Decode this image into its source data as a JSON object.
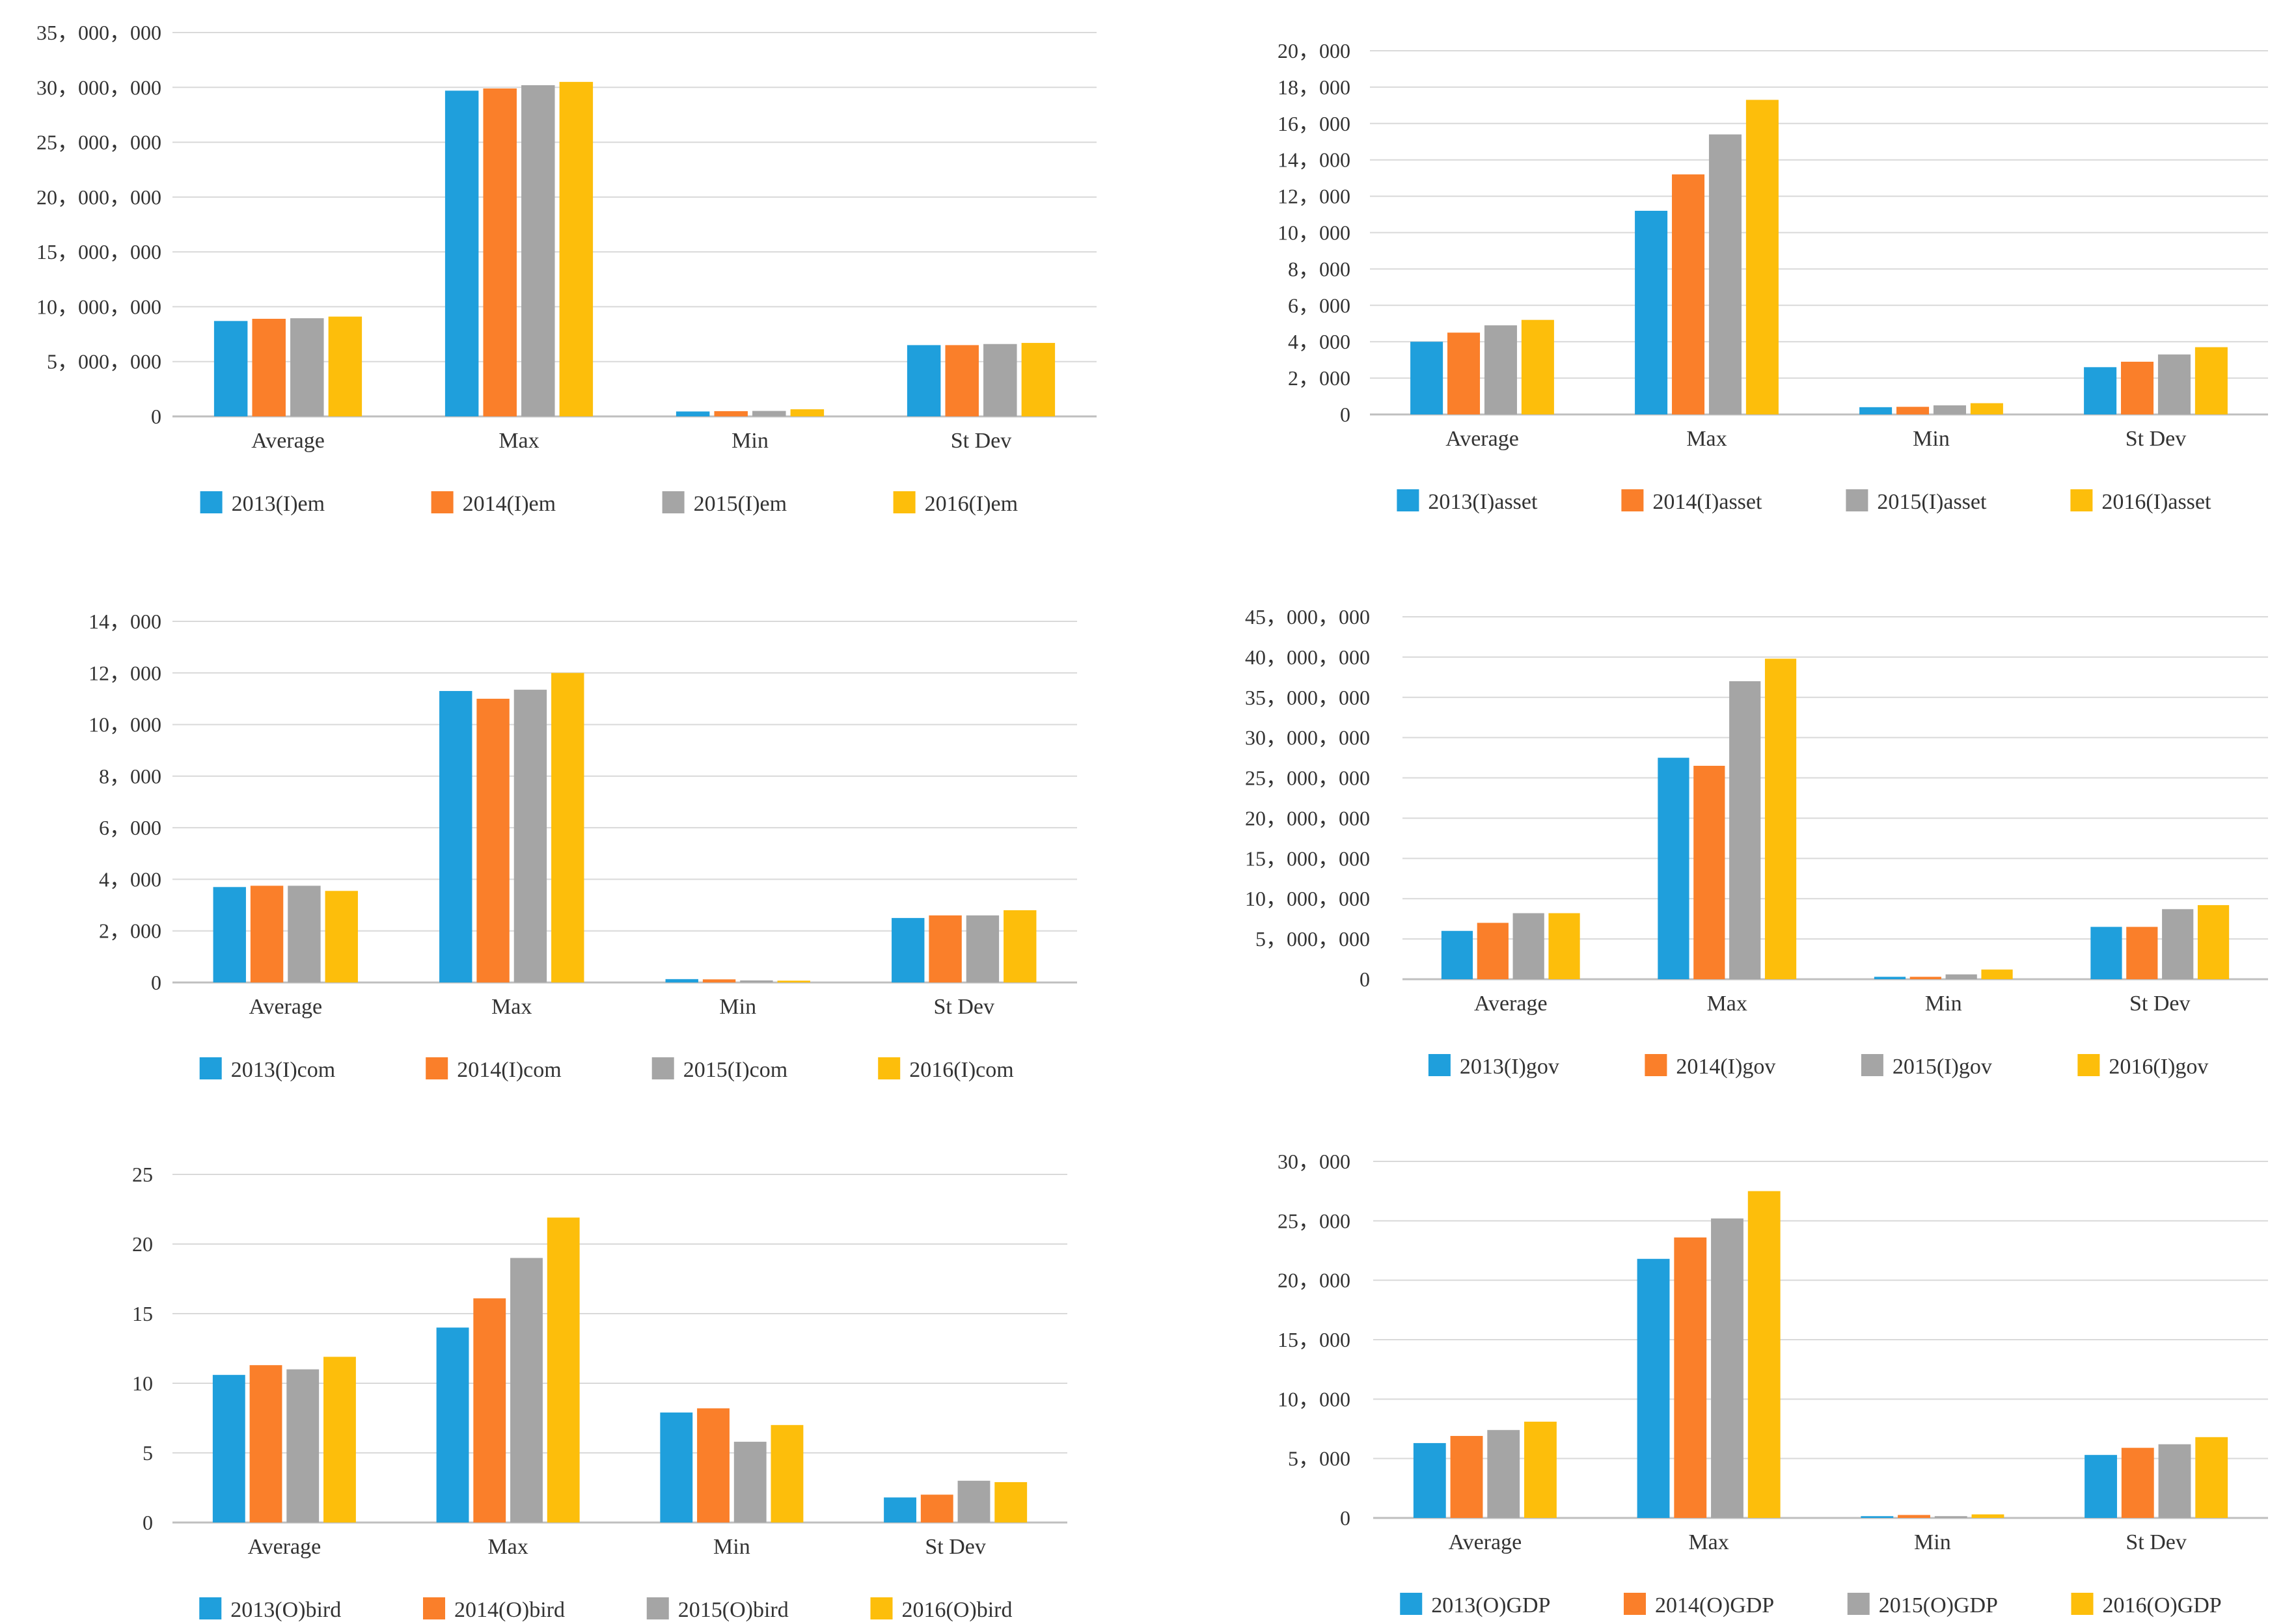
{
  "chart_data": [
    {
      "type": "bar",
      "categories": [
        "Average",
        "Max",
        "Min",
        "St Dev"
      ],
      "series": [
        {
          "name": "2013(I)em",
          "values": [
            8700000,
            29700000,
            450000,
            6500000
          ]
        },
        {
          "name": "2014(I)em",
          "values": [
            8900000,
            29900000,
            480000,
            6500000
          ]
        },
        {
          "name": "2015(I)em",
          "values": [
            8950000,
            30200000,
            500000,
            6600000
          ]
        },
        {
          "name": "2016(I)em",
          "values": [
            9100000,
            30500000,
            650000,
            6700000
          ]
        }
      ],
      "ylim": [
        0,
        35000000
      ],
      "yticks": [
        0,
        5000000,
        10000000,
        15000000,
        20000000,
        25000000,
        30000000,
        35000000
      ],
      "ytick_labels": [
        "0",
        "5，000，000",
        "10，000，000",
        "15，000，000",
        "20，000，000",
        "25，000，000",
        "30，000，000",
        "35，000，000"
      ],
      "grid": true,
      "legend": "bottom"
    },
    {
      "type": "bar",
      "categories": [
        "Average",
        "Max",
        "Min",
        "St Dev"
      ],
      "series": [
        {
          "name": "2013(I)asset",
          "values": [
            4000,
            11200,
            400,
            2600
          ]
        },
        {
          "name": "2014(I)asset",
          "values": [
            4500,
            13200,
            420,
            2900
          ]
        },
        {
          "name": "2015(I)asset",
          "values": [
            4900,
            15400,
            500,
            3300
          ]
        },
        {
          "name": "2016(I)asset",
          "values": [
            5200,
            17300,
            620,
            3700
          ]
        }
      ],
      "ylim": [
        0,
        20000
      ],
      "yticks": [
        0,
        2000,
        4000,
        6000,
        8000,
        10000,
        12000,
        14000,
        16000,
        18000,
        20000
      ],
      "ytick_labels": [
        "0",
        "2，000",
        "4，000",
        "6，000",
        "8，000",
        "10，000",
        "12，000",
        "14，000",
        "16，000",
        "18，000",
        "20，000"
      ],
      "grid": true,
      "legend": "bottom"
    },
    {
      "type": "bar",
      "categories": [
        "Average",
        "Max",
        "Min",
        "St Dev"
      ],
      "series": [
        {
          "name": "2013(I)com",
          "values": [
            3700,
            11300,
            130,
            2500
          ]
        },
        {
          "name": "2014(I)com",
          "values": [
            3750,
            11000,
            120,
            2600
          ]
        },
        {
          "name": "2015(I)com",
          "values": [
            3750,
            11350,
            80,
            2600
          ]
        },
        {
          "name": "2016(I)com",
          "values": [
            3550,
            12000,
            70,
            2800
          ]
        }
      ],
      "ylim": [
        0,
        14000
      ],
      "yticks": [
        0,
        2000,
        4000,
        6000,
        8000,
        10000,
        12000,
        14000
      ],
      "ytick_labels": [
        "0",
        "2，000",
        "4，000",
        "6，000",
        "8，000",
        "10，000",
        "12，000",
        "14，000"
      ],
      "grid": true,
      "legend": "bottom"
    },
    {
      "type": "bar",
      "categories": [
        "Average",
        "Max",
        "Min",
        "St Dev"
      ],
      "series": [
        {
          "name": "2013(I)gov",
          "values": [
            6000000,
            27500000,
            300000,
            6500000
          ]
        },
        {
          "name": "2014(I)gov",
          "values": [
            7000000,
            26500000,
            300000,
            6500000
          ]
        },
        {
          "name": "2015(I)gov",
          "values": [
            8200000,
            37000000,
            600000,
            8700000
          ]
        },
        {
          "name": "2016(I)gov",
          "values": [
            8200000,
            39800000,
            1200000,
            9200000
          ]
        }
      ],
      "ylim": [
        0,
        45000000
      ],
      "yticks": [
        0,
        5000000,
        10000000,
        15000000,
        20000000,
        25000000,
        30000000,
        35000000,
        40000000,
        45000000
      ],
      "ytick_labels": [
        "0",
        "5，000，000",
        "10，000，000",
        "15，000，000",
        "20，000，000",
        "25，000，000",
        "30，000，000",
        "35，000，000",
        "40，000，000",
        "45，000，000"
      ],
      "grid": true,
      "legend": "bottom"
    },
    {
      "type": "bar",
      "categories": [
        "Average",
        "Max",
        "Min",
        "St Dev"
      ],
      "series": [
        {
          "name": "2013(O)bird",
          "values": [
            10.6,
            14.0,
            7.9,
            1.8
          ]
        },
        {
          "name": "2014(O)bird",
          "values": [
            11.3,
            16.1,
            8.2,
            2.0
          ]
        },
        {
          "name": "2015(O)bird",
          "values": [
            11.0,
            19.0,
            5.8,
            3.0
          ]
        },
        {
          "name": "2016(O)bird",
          "values": [
            11.9,
            21.9,
            7.0,
            2.9
          ]
        }
      ],
      "ylim": [
        0,
        25
      ],
      "yticks": [
        0,
        5,
        10,
        15,
        20,
        25
      ],
      "ytick_labels": [
        "0",
        "5",
        "10",
        "15",
        "20",
        "25"
      ],
      "grid": true,
      "legend": "bottom"
    },
    {
      "type": "bar",
      "categories": [
        "Average",
        "Max",
        "Min",
        "St Dev"
      ],
      "series": [
        {
          "name": "2013(O)GDP",
          "values": [
            6300,
            21800,
            150,
            5300
          ]
        },
        {
          "name": "2014(O)GDP",
          "values": [
            6900,
            23600,
            250,
            5900
          ]
        },
        {
          "name": "2015(O)GDP",
          "values": [
            7400,
            25200,
            150,
            6200
          ]
        },
        {
          "name": "2016(O)GDP",
          "values": [
            8100,
            27500,
            300,
            6800
          ]
        }
      ],
      "ylim": [
        0,
        30000
      ],
      "yticks": [
        0,
        5000,
        10000,
        15000,
        20000,
        25000,
        30000
      ],
      "ytick_labels": [
        "0",
        "5，000",
        "10，000",
        "15，000",
        "20，000",
        "25，000",
        "30，000"
      ],
      "grid": true,
      "legend": "bottom"
    }
  ],
  "colors": [
    "#1f9fdc",
    "#fa7f2a",
    "#a5a5a5",
    "#fdbe0b"
  ]
}
